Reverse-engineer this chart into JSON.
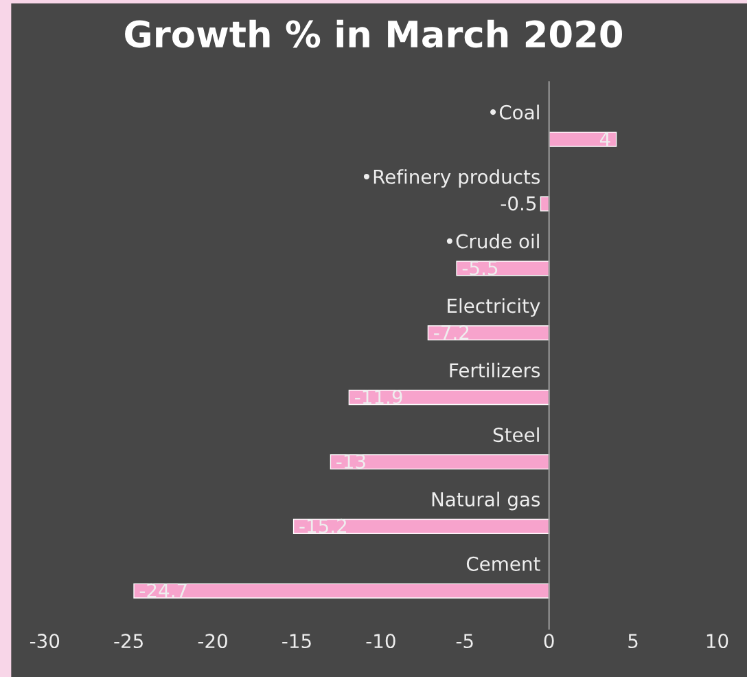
{
  "chart_data": {
    "type": "bar",
    "orientation": "horizontal",
    "title": "Growth % in March 2020",
    "categories": [
      "•Coal",
      "•Refinery products",
      "•Crude oil",
      "Electricity",
      "Fertilizers",
      "Steel",
      "Natural gas",
      "Cement"
    ],
    "values": [
      4,
      -0.5,
      -5.5,
      -7.2,
      -11.9,
      -13,
      -15.2,
      -24.7
    ],
    "color": "#f7a3cc",
    "xlim": [
      -30,
      10
    ],
    "xticks": [
      -30,
      -25,
      -20,
      -15,
      -10,
      -5,
      0,
      5,
      10
    ],
    "data_labels": true,
    "grid": false,
    "legend": false
  }
}
